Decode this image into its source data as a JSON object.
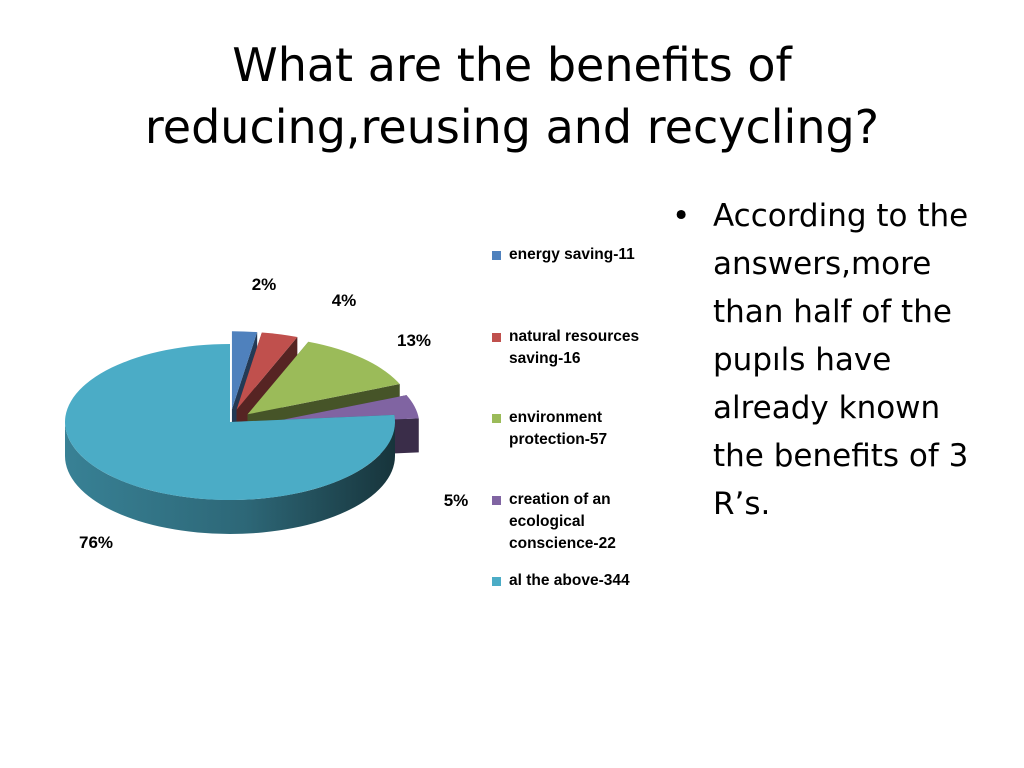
{
  "slide": {
    "title_line1": "What are the benefits of",
    "title_line2": "reducing,reusing and recycling?",
    "bullet_symbol": "•",
    "bullet_text": "According to the answers,more than half of the pupıls have already known the benefits of 3 R’s."
  },
  "chart_data": {
    "type": "pie",
    "title": "",
    "categories": [
      "energy saving-11",
      "natural resources saving-16",
      "environment protection-57",
      "creation of an ecological conscience-22",
      "al the above-344"
    ],
    "values": [
      11,
      16,
      57,
      22,
      344
    ],
    "percent_labels": [
      "2%",
      "4%",
      "13%",
      "5%",
      "76%"
    ],
    "colors": [
      "#4f81bd",
      "#c0504d",
      "#9bbb59",
      "#8064a2",
      "#4bacc6"
    ],
    "exploded": true,
    "three_d": true,
    "legend_position": "right"
  }
}
